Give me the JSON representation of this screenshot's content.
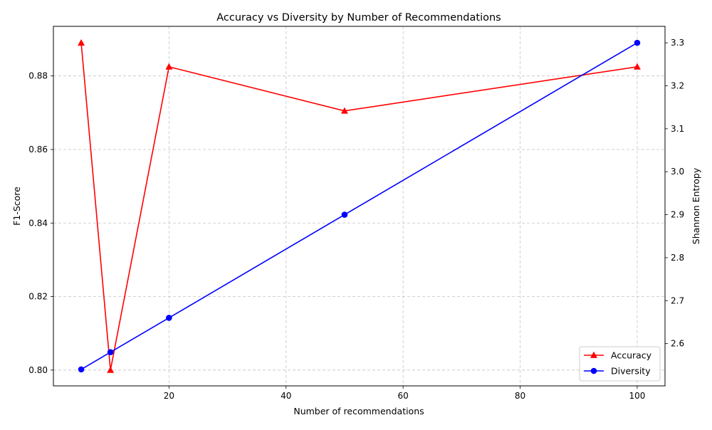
{
  "chart_data": {
    "type": "line",
    "title": "Accuracy vs Diversity by Number of Recommendations",
    "xlabel": "Number of recommendations",
    "ylabel": "F1-Score",
    "y2label": "Shannon Entropy",
    "x": [
      5,
      10,
      20,
      50,
      100
    ],
    "xlim": [
      0.25,
      104.75
    ],
    "ylim": [
      0.7957,
      0.8935
    ],
    "y2lim": [
      2.5017,
      3.3383
    ],
    "x_ticks": [
      20,
      40,
      60,
      80,
      100
    ],
    "x_tick_labels": [
      "20",
      "40",
      "60",
      "80",
      "100"
    ],
    "y_ticks": [
      0.8,
      0.82,
      0.84,
      0.86,
      0.88
    ],
    "y_tick_labels": [
      "0.80",
      "0.82",
      "0.84",
      "0.86",
      "0.88"
    ],
    "y2_ticks": [
      2.6,
      2.7,
      2.8,
      2.9,
      3.0,
      3.1,
      3.2,
      3.3
    ],
    "y2_tick_labels": [
      "2.6",
      "2.7",
      "2.8",
      "2.9",
      "3.0",
      "3.1",
      "3.2",
      "3.3"
    ],
    "grid": true,
    "legend_position": "lower-right",
    "series": [
      {
        "name": "Accuracy",
        "axis": "left",
        "color": "#ff0000",
        "marker": "triangle",
        "values": [
          0.889,
          0.8,
          0.8825,
          0.8705,
          0.8825
        ]
      },
      {
        "name": "Diversity",
        "axis": "right",
        "color": "#0000ff",
        "marker": "circle",
        "values": [
          2.54,
          2.58,
          2.66,
          2.9,
          3.3
        ]
      }
    ]
  }
}
